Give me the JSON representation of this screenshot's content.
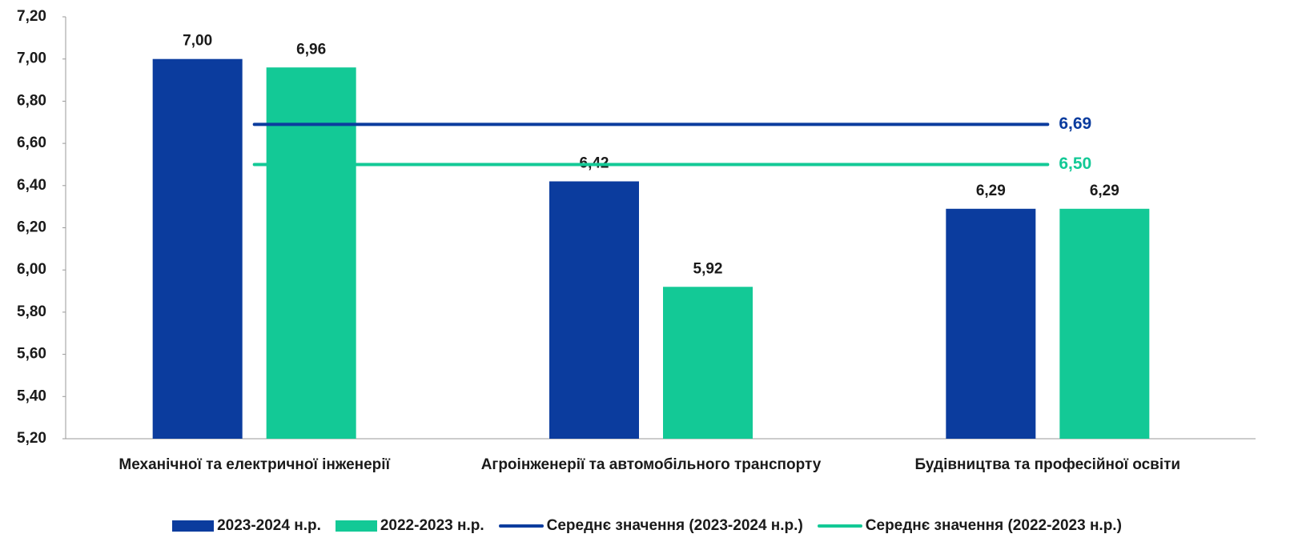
{
  "chart_data": {
    "type": "bar",
    "categories": [
      "Механічної та електричної інженерії",
      "Агроінженерії та автомобільного транспорту",
      "Будівництва та професійної освіти"
    ],
    "series": [
      {
        "name": "2023-2024 н.р.",
        "color": "#0b3c9e",
        "values": [
          7.0,
          6.42,
          6.29
        ],
        "value_labels": [
          "7,00",
          "6,42",
          "6,29"
        ]
      },
      {
        "name": "2022-2023 н.р.",
        "color": "#13c996",
        "values": [
          6.96,
          5.92,
          6.29
        ],
        "value_labels": [
          "6,96",
          "5,92",
          "6,29"
        ]
      },
      {
        "name": "Середнє значення (2023-2024 н.р.)",
        "color": "#0b3c9e",
        "type": "line",
        "value": 6.69,
        "value_label": "6,69"
      },
      {
        "name": "Середнє значення (2022-2023 н.р.)",
        "color": "#13c996",
        "type": "line",
        "value": 6.5,
        "value_label": "6,50"
      }
    ],
    "ylim": [
      5.2,
      7.2
    ],
    "yticks": [
      {
        "value": 5.2,
        "label": "5,20"
      },
      {
        "value": 5.4,
        "label": "5,40"
      },
      {
        "value": 5.6,
        "label": "5,60"
      },
      {
        "value": 5.8,
        "label": "5,80"
      },
      {
        "value": 6.0,
        "label": "6,00"
      },
      {
        "value": 6.2,
        "label": "6,20"
      },
      {
        "value": 6.4,
        "label": "6,40"
      },
      {
        "value": 6.6,
        "label": "6,60"
      },
      {
        "value": 6.8,
        "label": "6,80"
      },
      {
        "value": 7.0,
        "label": "7,00"
      },
      {
        "value": 7.2,
        "label": "7,20"
      }
    ],
    "legend": "bottom"
  }
}
